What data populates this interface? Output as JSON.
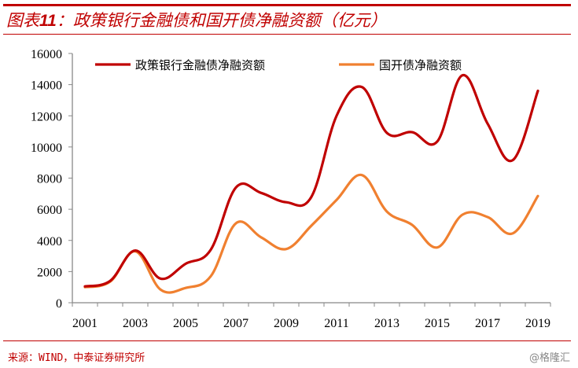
{
  "header": {
    "title_prefix": "图表",
    "title_number": "11",
    "title_text": "：政策银行金融债和国开债净融资额（亿元）"
  },
  "footer": {
    "source": "来源：WIND，中泰证券研究所",
    "watermark": "@格隆汇"
  },
  "colors": {
    "accent": "#c00000",
    "series_policy_bank": "#c00000",
    "series_cdb": "#f08030"
  },
  "chart_data": {
    "type": "line",
    "title": "政策银行金融债和国开债净融资额（亿元）",
    "xlabel": "",
    "ylabel": "",
    "ylim": [
      0,
      16000
    ],
    "yticks": [
      "0",
      "2000",
      "4000",
      "6000",
      "8000",
      "10000",
      "12000",
      "14000",
      "16000"
    ],
    "x": [
      "2001",
      "2002",
      "2003",
      "2004",
      "2005",
      "2006",
      "2007",
      "2008",
      "2009",
      "2010",
      "2011",
      "2012",
      "2013",
      "2014",
      "2015",
      "2016",
      "2017",
      "2018",
      "2019"
    ],
    "xtick_labels": [
      "2001",
      "2003",
      "2005",
      "2007",
      "2009",
      "2011",
      "2013",
      "2015",
      "2017",
      "2019"
    ],
    "legend_position": "top",
    "grid": false,
    "series": [
      {
        "name": "政策银行金融债净融资额",
        "color": "#c00000",
        "values": [
          1050,
          1400,
          3350,
          1550,
          2500,
          3400,
          7400,
          7050,
          6450,
          6800,
          12000,
          13850,
          10900,
          10950,
          10350,
          14600,
          11500,
          9150,
          13600
        ]
      },
      {
        "name": "国开债净融资额",
        "color": "#f08030",
        "values": [
          1000,
          1350,
          3300,
          850,
          950,
          1700,
          5100,
          4200,
          3450,
          4950,
          6600,
          8200,
          5850,
          5000,
          3550,
          5650,
          5500,
          4450,
          6850
        ]
      }
    ]
  }
}
